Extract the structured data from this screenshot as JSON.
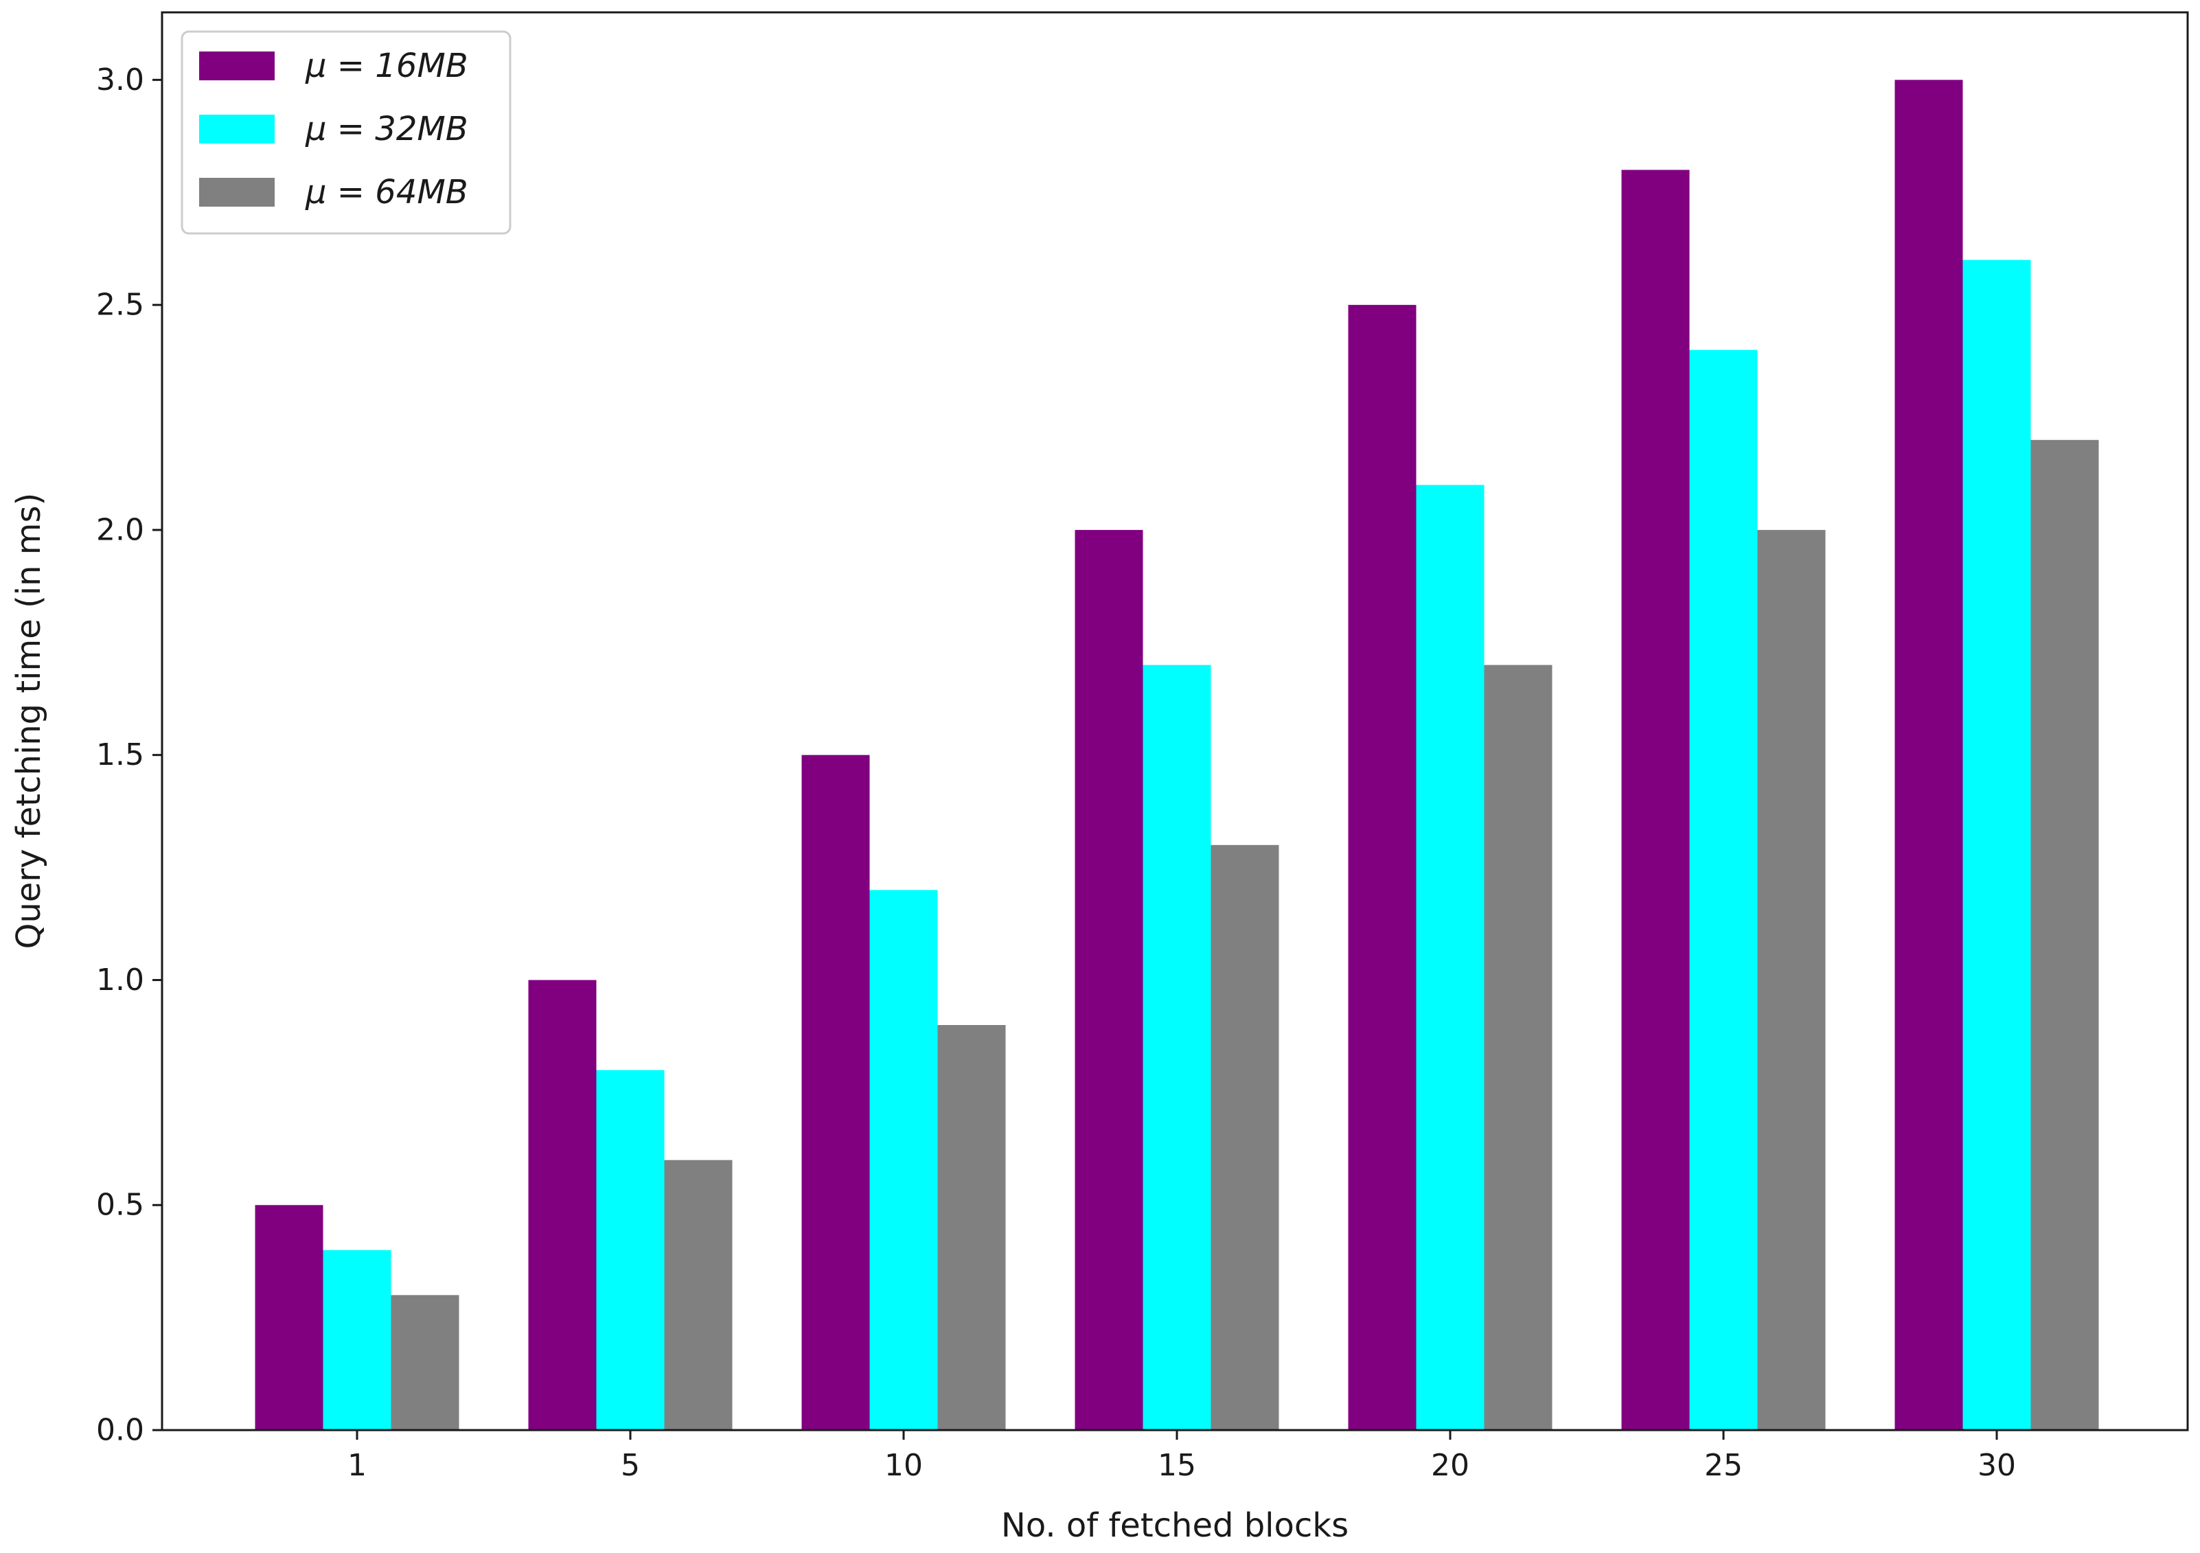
{
  "chart_data": {
    "type": "bar",
    "categories": [
      "1",
      "5",
      "10",
      "15",
      "20",
      "25",
      "30"
    ],
    "series": [
      {
        "name": "μ = 16MB",
        "color": "#800080",
        "values": [
          0.5,
          1.0,
          1.5,
          2.0,
          2.5,
          2.8,
          3.0
        ]
      },
      {
        "name": "μ = 32MB",
        "color": "#00FFFF",
        "values": [
          0.4,
          0.8,
          1.2,
          1.7,
          2.1,
          2.4,
          2.6
        ]
      },
      {
        "name": "μ = 64MB",
        "color": "#808080",
        "values": [
          0.3,
          0.6,
          0.9,
          1.3,
          1.7,
          2.0,
          2.2
        ]
      }
    ],
    "xlabel": "No. of fetched blocks",
    "ylabel": "Query fetching time (in ms)",
    "ylim": [
      0,
      3.15
    ],
    "yticks": [
      "0.0",
      "0.5",
      "1.0",
      "1.5",
      "2.0",
      "2.5",
      "3.0"
    ],
    "grid": false,
    "legend_position": "top-left"
  }
}
